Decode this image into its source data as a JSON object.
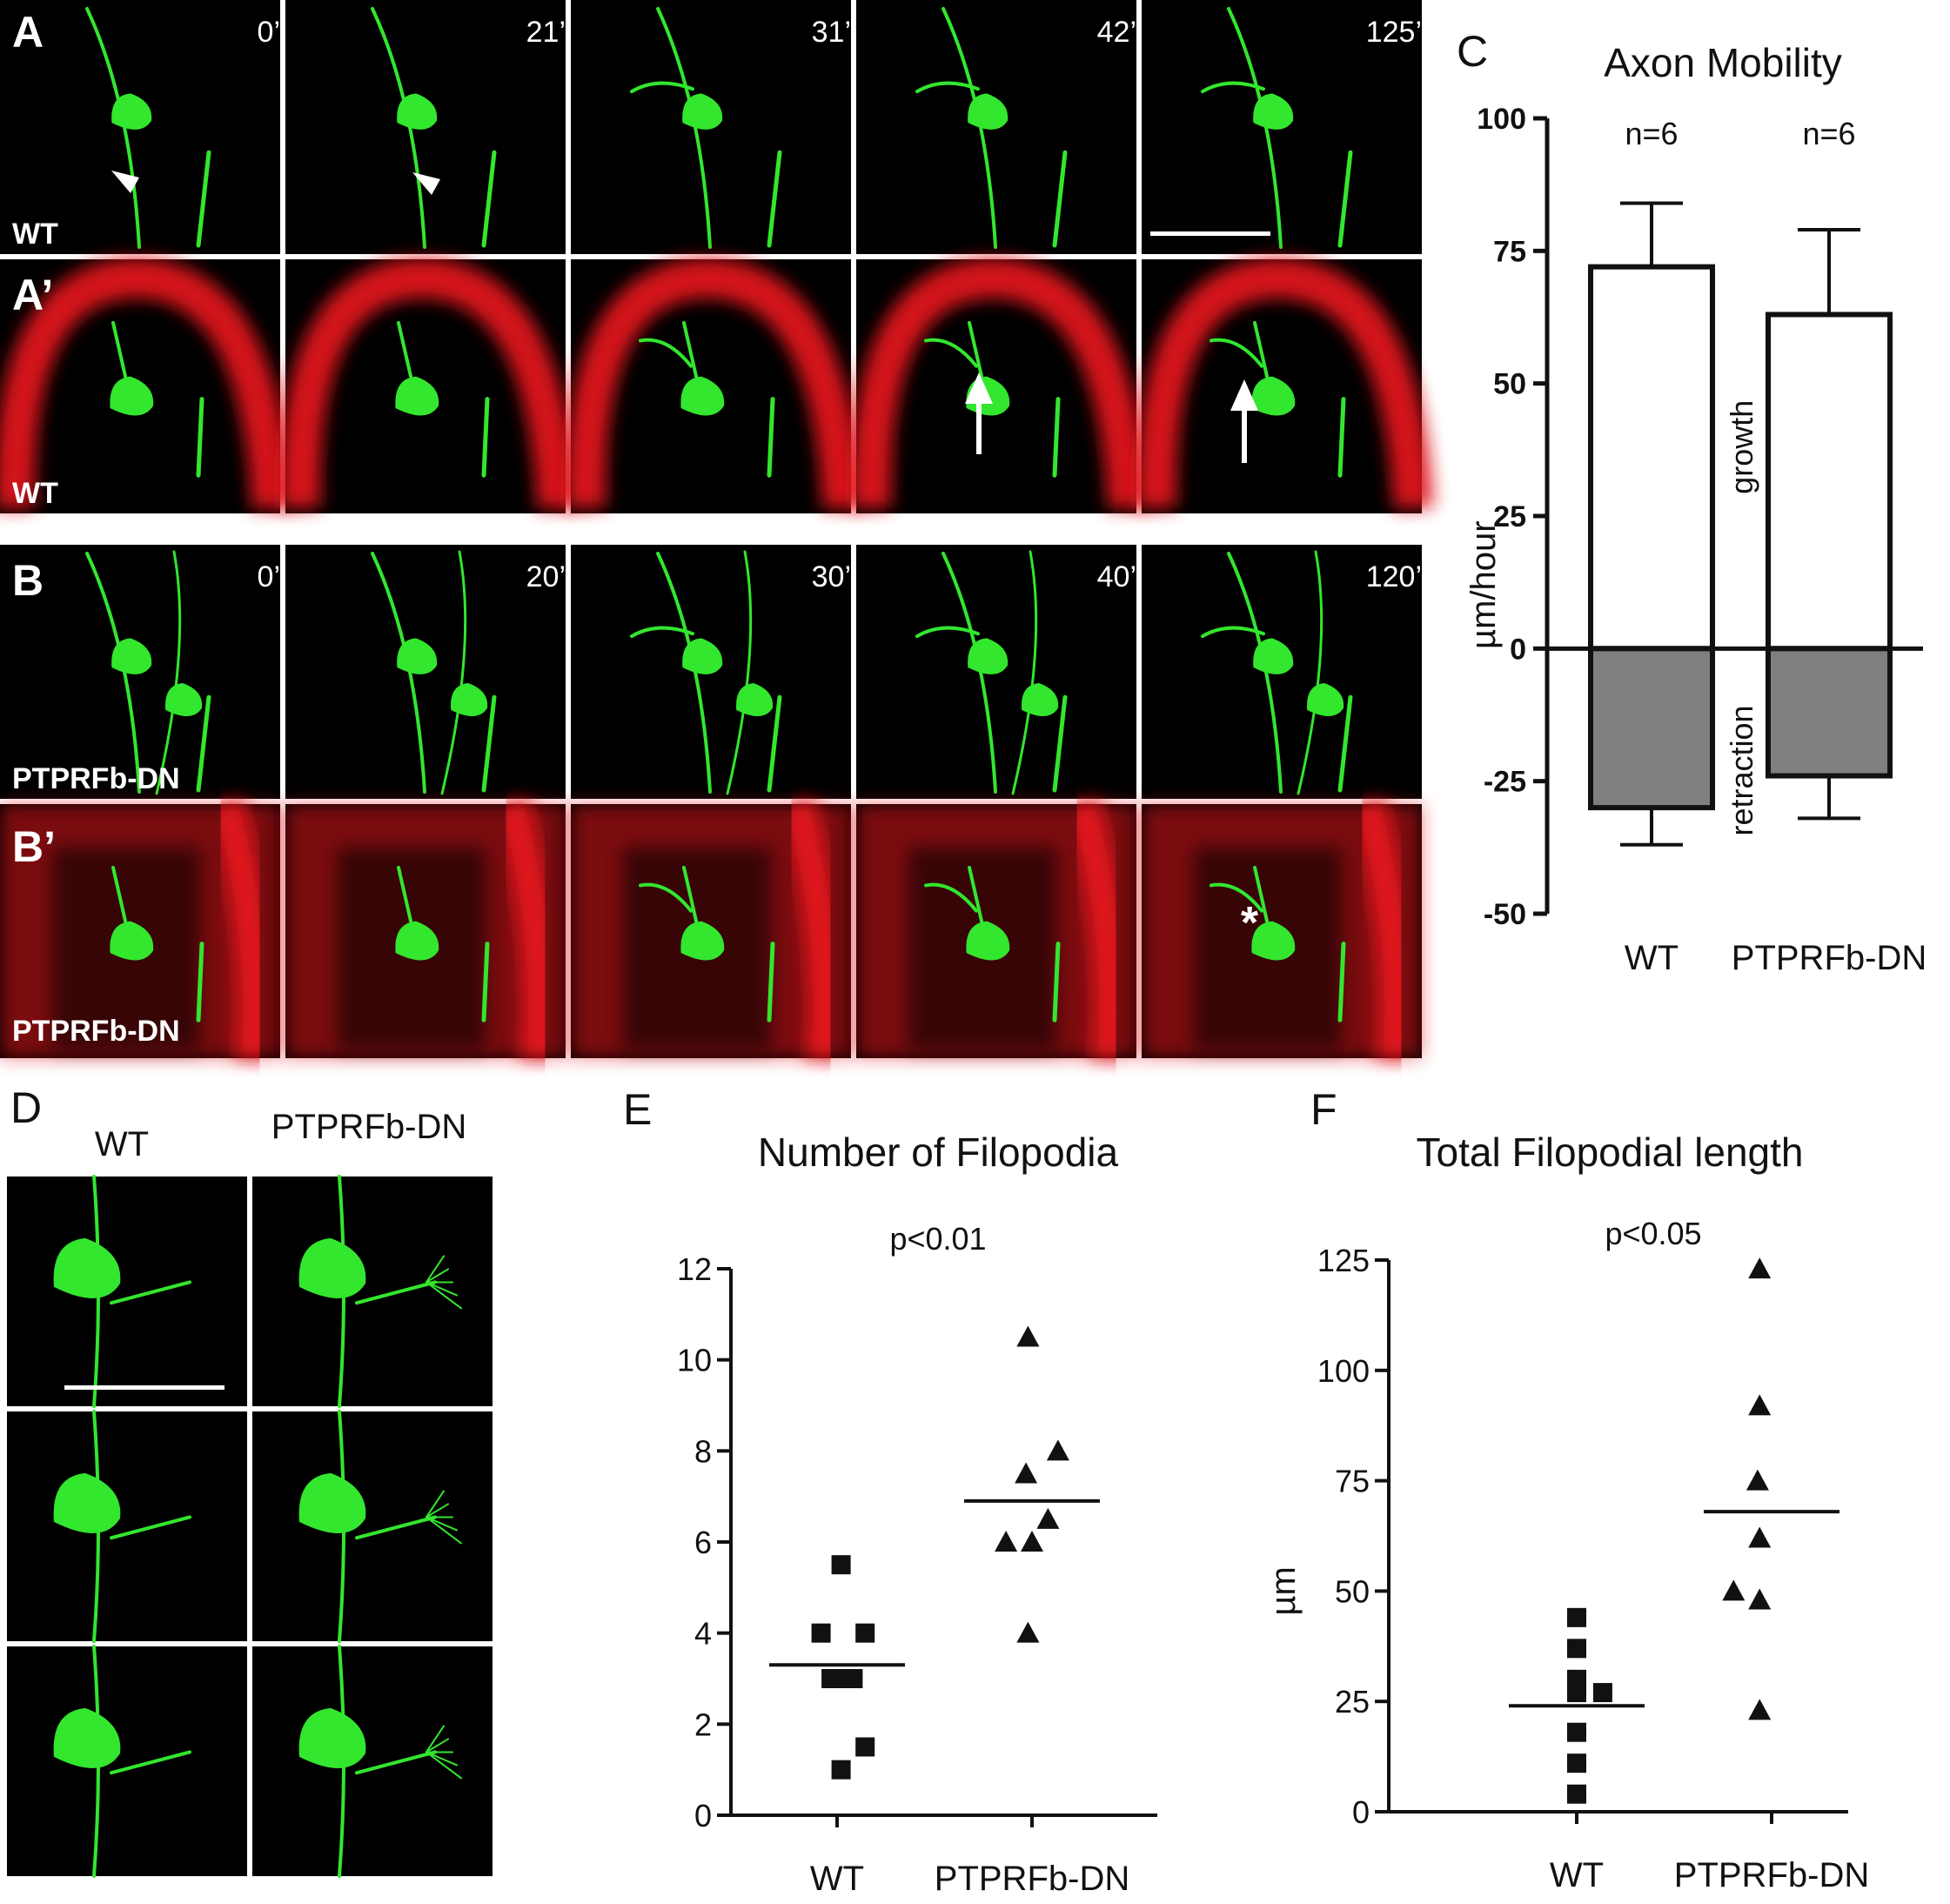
{
  "panel_labels": {
    "A": "A",
    "A_prime": "A’",
    "B": "B",
    "B_prime": "B’",
    "C": "C",
    "D": "D",
    "E": "E",
    "F": "F"
  },
  "micrographs": {
    "row_a_condition": "WT",
    "row_a_prime_condition": "WT",
    "row_b_condition": "PTPRFb-DN",
    "row_b_prime_condition": "PTPRFb-DN",
    "row_a_times": [
      "0’",
      "21’",
      "31’",
      "42’",
      "125’"
    ],
    "row_b_times": [
      "0’",
      "20’",
      "30’",
      "40’",
      "120’"
    ],
    "asterisk": "*",
    "colors": {
      "gfp": "#33e62e",
      "membrane_red": "#e0161c",
      "background": "#000000"
    },
    "panel_d_headers": [
      "WT",
      "PTPRFb-DN"
    ]
  },
  "chart_data": [
    {
      "id": "C",
      "type": "bar",
      "title": "Axon Mobility",
      "ylabel": "µm/hour",
      "ylim": [
        -50,
        100
      ],
      "yticks": [
        "100",
        "75",
        "50",
        "25",
        "0",
        "-25",
        "-50"
      ],
      "categories": [
        "WT",
        "PTPRFb-DN"
      ],
      "series": [
        {
          "name": "growth",
          "values": [
            72,
            63
          ],
          "errors": [
            12,
            16
          ],
          "color": "#ffffff"
        },
        {
          "name": "retraction",
          "values": [
            -30,
            -24
          ],
          "errors": [
            7,
            8
          ],
          "color": "#7f7f7f"
        }
      ],
      "annotations": [
        "n=6",
        "n=6"
      ]
    },
    {
      "id": "E",
      "type": "scatter",
      "title": "Number of Filopodia",
      "ylabel": "",
      "ylim": [
        0,
        12
      ],
      "yticks": [
        "0",
        "2",
        "4",
        "6",
        "8",
        "10",
        "12"
      ],
      "categories": [
        "WT",
        "PTPRFb-DN"
      ],
      "annotation": "p<0.01",
      "groups": [
        {
          "category": "WT",
          "marker": "square",
          "mean": 3.3,
          "points": [
            [
              -0.08,
              4
            ],
            [
              0.02,
              3
            ],
            [
              0.08,
              3
            ],
            [
              0.14,
              4
            ],
            [
              -0.03,
              3
            ],
            [
              0.14,
              1.5
            ],
            [
              0.02,
              1
            ],
            [
              0.02,
              5.5
            ]
          ]
        },
        {
          "category": "PTPRFb-DN",
          "marker": "triangle",
          "mean": 6.9,
          "points": [
            [
              -0.02,
              10.5
            ],
            [
              -0.03,
              7.5
            ],
            [
              0.13,
              8
            ],
            [
              -0.13,
              6
            ],
            [
              0.0,
              6
            ],
            [
              0.08,
              6.5
            ],
            [
              -0.02,
              4
            ]
          ]
        }
      ]
    },
    {
      "id": "F",
      "type": "scatter",
      "title": "Total Filopodial length",
      "ylabel": "µm",
      "ylim": [
        0,
        125
      ],
      "yticks": [
        "0",
        "25",
        "50",
        "75",
        "100",
        "125"
      ],
      "categories": [
        "WT",
        "PTPRFb-DN"
      ],
      "annotation": "p<0.05",
      "groups": [
        {
          "category": "WT",
          "marker": "square",
          "mean": 24,
          "points": [
            [
              0.0,
              44
            ],
            [
              0.0,
              37
            ],
            [
              0.0,
              30
            ],
            [
              0.0,
              27
            ],
            [
              0.13,
              27
            ],
            [
              0.0,
              18
            ],
            [
              0.0,
              11
            ],
            [
              0.0,
              4
            ]
          ]
        },
        {
          "category": "PTPRFb-DN",
          "marker": "triangle",
          "mean": 68,
          "points": [
            [
              -0.06,
              123
            ],
            [
              -0.06,
              92
            ],
            [
              -0.07,
              75
            ],
            [
              -0.06,
              62
            ],
            [
              -0.19,
              50
            ],
            [
              -0.06,
              48
            ],
            [
              -0.06,
              23
            ]
          ]
        }
      ]
    }
  ]
}
